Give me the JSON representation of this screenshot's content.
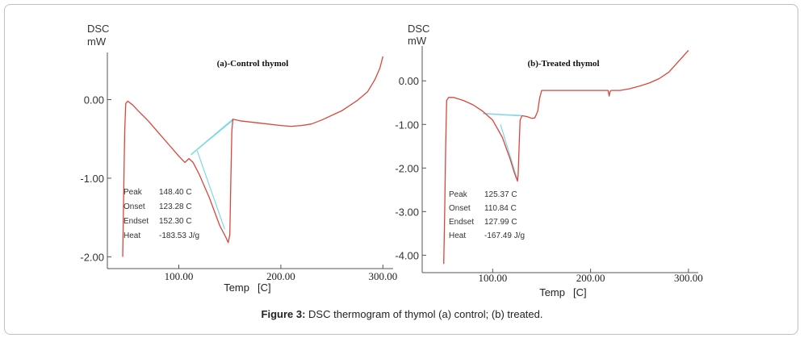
{
  "caption": {
    "label": "Figure 3:",
    "text": "DSC thermogram of thymol (a) control; (b) treated."
  },
  "chart_data": [
    {
      "type": "line",
      "title": "(a)-Control thymol",
      "ylabel_top": "DSC",
      "ylabel_unit": "mW",
      "xlabel": "Temp",
      "xunit": "[C]",
      "xlim": [
        30,
        310
      ],
      "ylim": [
        -2.15,
        0.6
      ],
      "xticks": [
        100,
        200,
        300
      ],
      "xtick_labels": [
        "100.00",
        "200.00",
        "300.00"
      ],
      "yticks": [
        0,
        -1,
        -2
      ],
      "ytick_labels": [
        "0.00",
        "-1.00",
        "-2.00"
      ],
      "colors": {
        "curve": "#d9463c",
        "baseline": "#7fd8e6"
      },
      "series": [
        {
          "x": [
            45,
            46,
            47,
            48,
            50,
            55,
            60,
            70,
            80,
            90,
            100,
            106,
            110,
            114,
            120,
            130,
            140,
            146,
            148.4,
            150,
            151,
            152,
            153,
            160,
            180,
            200,
            210,
            220,
            230,
            240,
            260,
            275,
            285,
            292,
            297,
            300
          ],
          "y": [
            -2.0,
            -1.2,
            -0.4,
            -0.05,
            -0.02,
            -0.07,
            -0.14,
            -0.27,
            -0.42,
            -0.57,
            -0.72,
            -0.8,
            -0.75,
            -0.8,
            -0.95,
            -1.25,
            -1.6,
            -1.75,
            -1.82,
            -1.72,
            -1.0,
            -0.4,
            -0.25,
            -0.27,
            -0.3,
            -0.33,
            -0.34,
            -0.33,
            -0.31,
            -0.26,
            -0.14,
            -0.01,
            0.1,
            0.25,
            0.4,
            0.55
          ]
        }
      ],
      "baseline": {
        "x": [
          112,
          153
        ],
        "y": [
          -0.7,
          -0.25
        ]
      },
      "onset_tangent": {
        "x": [
          112,
          152.3
        ],
        "y": [
          -0.7,
          -0.27
        ]
      },
      "tangent": {
        "x": [
          118,
          145
        ],
        "y": [
          -0.65,
          -1.65
        ]
      },
      "annotations": [
        {
          "key": "Peak",
          "value": "148.40 C"
        },
        {
          "key": "Onset",
          "value": "123.28 C"
        },
        {
          "key": "Endset",
          "value": "152.30 C"
        },
        {
          "key": "Heat",
          "value": "-183.53 J/g"
        }
      ]
    },
    {
      "type": "line",
      "title": "(b)-Treated thymol",
      "ylabel_top": "DSC",
      "ylabel_unit": "mW",
      "xlabel": "Temp",
      "xunit": "[C]",
      "xlim": [
        28,
        310
      ],
      "ylim": [
        -4.4,
        0.8
      ],
      "xticks": [
        100,
        200,
        300
      ],
      "xtick_labels": [
        "100.00",
        "200.00",
        "300.00"
      ],
      "yticks": [
        0,
        -1,
        -2,
        -3,
        -4
      ],
      "ytick_labels": [
        "0.00",
        "-1.00",
        "-2.00",
        "-3.00",
        "-4.00"
      ],
      "colors": {
        "curve": "#d9463c",
        "baseline": "#7fd8e6"
      },
      "series": [
        {
          "x": [
            50,
            51,
            52,
            53,
            55,
            60,
            70,
            80,
            90,
            100,
            110,
            118,
            122,
            125.37,
            126,
            127,
            128,
            130,
            135,
            140,
            143,
            146,
            148,
            150,
            160,
            180,
            200,
            210,
            218,
            219,
            220,
            221,
            230,
            240,
            250,
            260,
            270,
            280,
            290,
            300
          ],
          "y": [
            -4.2,
            -3.0,
            -1.5,
            -0.45,
            -0.38,
            -0.38,
            -0.45,
            -0.55,
            -0.7,
            -0.9,
            -1.3,
            -1.8,
            -2.1,
            -2.3,
            -2.15,
            -1.5,
            -0.9,
            -0.8,
            -0.82,
            -0.86,
            -0.85,
            -0.7,
            -0.4,
            -0.22,
            -0.22,
            -0.22,
            -0.22,
            -0.22,
            -0.22,
            -0.35,
            -0.24,
            -0.22,
            -0.22,
            -0.18,
            -0.12,
            -0.05,
            0.05,
            0.2,
            0.45,
            0.7
          ]
        }
      ],
      "baseline": {
        "x": [
          90,
          130
        ],
        "y": [
          -0.75,
          -0.8
        ]
      },
      "onset_tangent": {
        "x": [
          95,
          128
        ],
        "y": [
          -0.76,
          -0.8
        ]
      },
      "tangent": {
        "x": [
          108,
          125
        ],
        "y": [
          -1.0,
          -2.25
        ]
      },
      "annotations": [
        {
          "key": "Peak",
          "value": "125.37 C"
        },
        {
          "key": "Onset",
          "value": "110.84 C"
        },
        {
          "key": "Endset",
          "value": "127.99 C"
        },
        {
          "key": "Heat",
          "value": "-167.49 J/g"
        }
      ]
    }
  ]
}
